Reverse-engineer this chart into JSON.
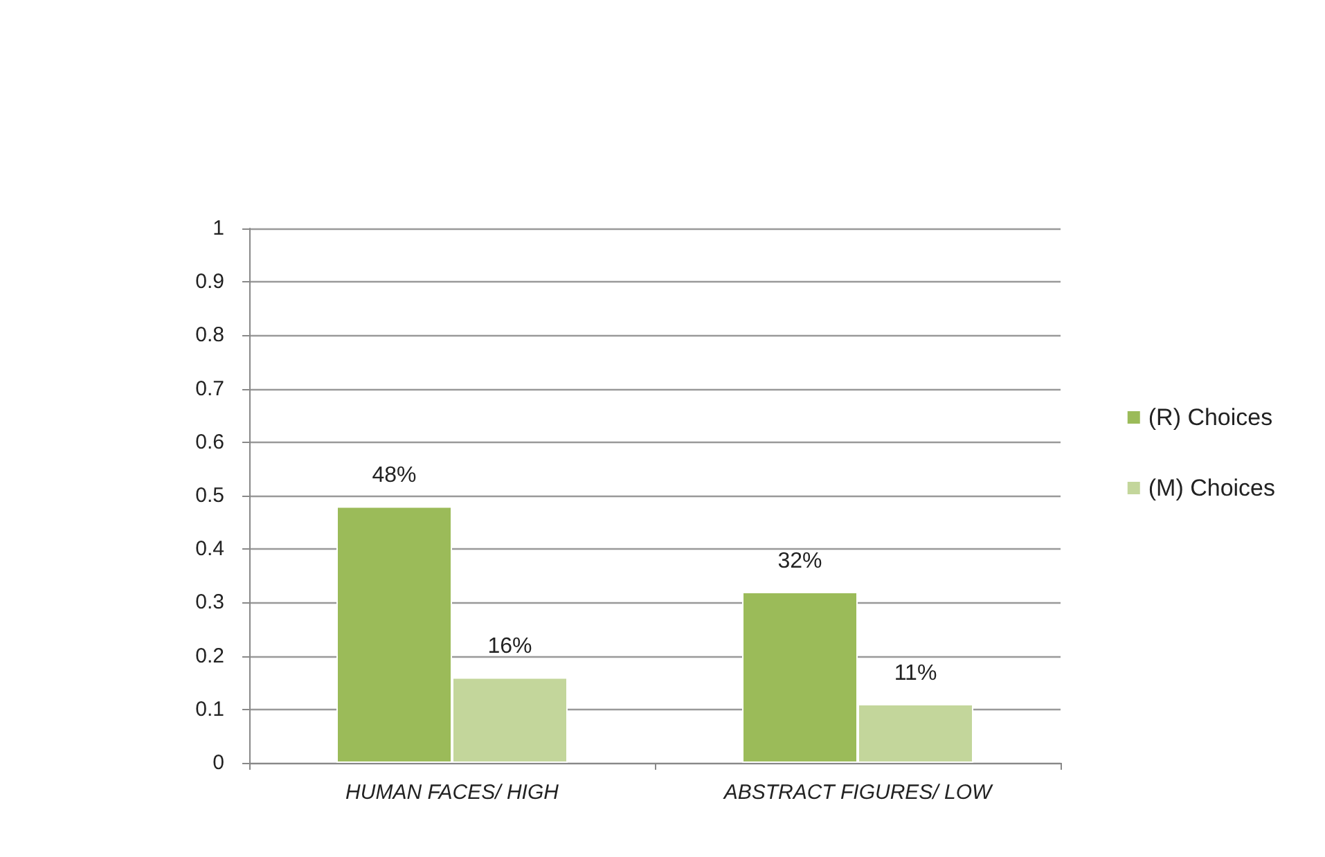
{
  "chart_data": {
    "type": "bar",
    "categories": [
      "HUMAN FACES/ HIGH",
      "ABSTRACT FIGURES/ LOW"
    ],
    "series": [
      {
        "name": "(R) Choices",
        "color": "#9bbb59",
        "values": [
          0.48,
          0.32
        ],
        "value_labels": [
          "48%",
          "32%"
        ]
      },
      {
        "name": "(M) Choices",
        "color": "#c3d69b",
        "values": [
          0.16,
          0.11
        ],
        "value_labels": [
          "16%",
          "11%"
        ]
      }
    ],
    "ylim": [
      0,
      1
    ],
    "yticks": [
      0,
      0.1,
      0.2,
      0.3,
      0.4,
      0.5,
      0.6,
      0.7,
      0.8,
      0.9,
      1
    ],
    "grid": "y",
    "legend": "right"
  }
}
